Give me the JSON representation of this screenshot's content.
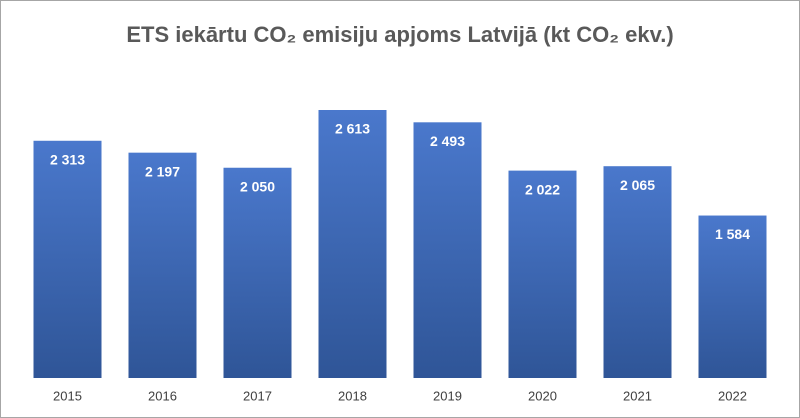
{
  "chart_data": {
    "type": "bar",
    "title": "ETS iekārtu CO₂ emisiju apjoms Latvijā (kt CO₂ ekv.)",
    "categories": [
      "2015",
      "2016",
      "2017",
      "2018",
      "2019",
      "2020",
      "2021",
      "2022"
    ],
    "values": [
      2313,
      2197,
      2050,
      2613,
      2493,
      2022,
      2065,
      1584
    ],
    "value_labels": [
      "2 313",
      "2 197",
      "2 050",
      "2 613",
      "2 493",
      "2 022",
      "2 065",
      "1 584"
    ],
    "color": "#4472c4"
  }
}
